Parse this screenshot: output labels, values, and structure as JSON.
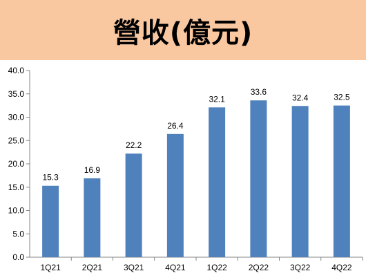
{
  "chart_data": {
    "type": "bar",
    "title": "營收(億元)",
    "categories": [
      "1Q21",
      "2Q21",
      "3Q21",
      "4Q21",
      "1Q22",
      "2Q22",
      "3Q22",
      "4Q22"
    ],
    "values": [
      15.3,
      16.9,
      22.2,
      26.4,
      32.1,
      33.6,
      32.4,
      32.5
    ],
    "data_labels": [
      "15.3",
      "16.9",
      "22.2",
      "26.4",
      "32.1",
      "33.6",
      "32.4",
      "32.5"
    ],
    "ylim": [
      0,
      40
    ],
    "yticks": [
      "0.0",
      "5.0",
      "10.0",
      "15.0",
      "20.0",
      "25.0",
      "30.0",
      "35.0",
      "40.0"
    ],
    "grid": false,
    "legend": "none",
    "colors": {
      "bar": "#4f81bd",
      "title_band": "#fac8a0",
      "axis": "#868686"
    }
  }
}
